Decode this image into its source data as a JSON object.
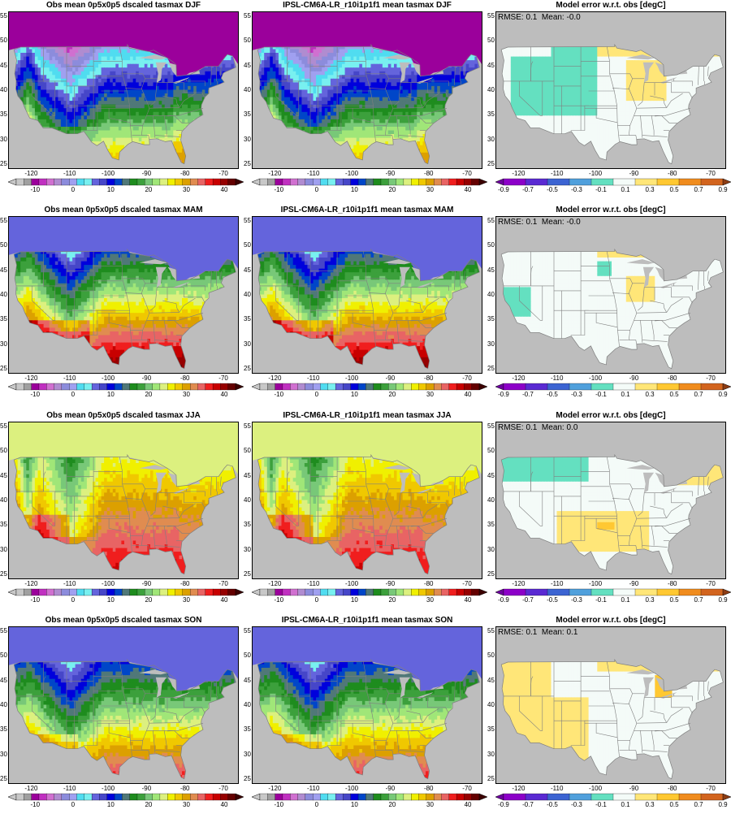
{
  "figure": {
    "rows": [
      {
        "season": "DJF",
        "obs_title": "Obs mean 0p5x0p5 dscaled tasmax DJF",
        "model_title": "IPSL-CM6A-LR_r10i1p1f1 mean tasmax DJF",
        "error_title": "Model error w.r.t. obs [degC]",
        "rmse_text": "RMSE: 0.1",
        "mean_text": "Mean: -0.0"
      },
      {
        "season": "MAM",
        "obs_title": "Obs mean 0p5x0p5 dscaled tasmax MAM",
        "model_title": "IPSL-CM6A-LR_r10i1p1f1 mean tasmax MAM",
        "error_title": "Model error w.r.t. obs [degC]",
        "rmse_text": "RMSE: 0.1",
        "mean_text": "Mean: -0.0"
      },
      {
        "season": "JJA",
        "obs_title": "Obs mean 0p5x0p5 dscaled tasmax JJA",
        "model_title": "IPSL-CM6A-LR_r10i1p1f1 mean tasmax JJA",
        "error_title": "Model error w.r.t. obs [degC]",
        "rmse_text": "RMSE: 0.1",
        "mean_text": "Mean: 0.0"
      },
      {
        "season": "SON",
        "obs_title": "Obs mean 0p5x0p5 dscaled tasmax SON",
        "model_title": "IPSL-CM6A-LR_r10i1p1f1 mean tasmax SON",
        "error_title": "Model error w.r.t. obs [degC]",
        "rmse_text": "RMSE: 0.1",
        "mean_text": "Mean: 0.1"
      }
    ],
    "lat_ticks": [
      "55",
      "50",
      "45",
      "40",
      "35",
      "30",
      "25"
    ],
    "lon_ticks": [
      "-120",
      "-110",
      "-100",
      "-90",
      "-80",
      "-70"
    ],
    "temp_colorbar": {
      "labels": [
        "-10",
        "0",
        "10",
        "20",
        "30",
        "40"
      ],
      "colors": [
        "#c8c8c8",
        "#a0a0a0",
        "#9b009b",
        "#c030c0",
        "#d070d0",
        "#b08cd0",
        "#8c8cdc",
        "#a0a0f0",
        "#50dcf0",
        "#78f0f0",
        "#6464dc",
        "#4646c8",
        "#0000dc",
        "#0046c8",
        "#507878",
        "#1e8c1e",
        "#3ca03c",
        "#78c878",
        "#a0e678",
        "#dcf07f",
        "#f0f000",
        "#f0c800",
        "#dca000",
        "#e08c50",
        "#e86464",
        "#f01e1e",
        "#c80000",
        "#960000",
        "#640000"
      ],
      "left_triangle": "#c8c8c8",
      "right_triangle": "#3c0000"
    },
    "error_colorbar": {
      "labels": [
        "-0.9",
        "-0.7",
        "-0.5",
        "-0.3",
        "-0.1",
        "0.1",
        "0.3",
        "0.5",
        "0.7",
        "0.9"
      ],
      "colors": [
        "#8c00c8",
        "#5a2ad2",
        "#3c64d2",
        "#50a0dc",
        "#64e0c0",
        "#f4fbf8",
        "#ffe678",
        "#ffc832",
        "#f08c1e",
        "#d2641e"
      ],
      "left_triangle": "#6e00a0",
      "right_triangle": "#8c3c14"
    },
    "colors": {
      "ocean": "#bdbdbd",
      "lakes": "#bdbdbd",
      "state_lines": "#7f7f7f"
    }
  }
}
